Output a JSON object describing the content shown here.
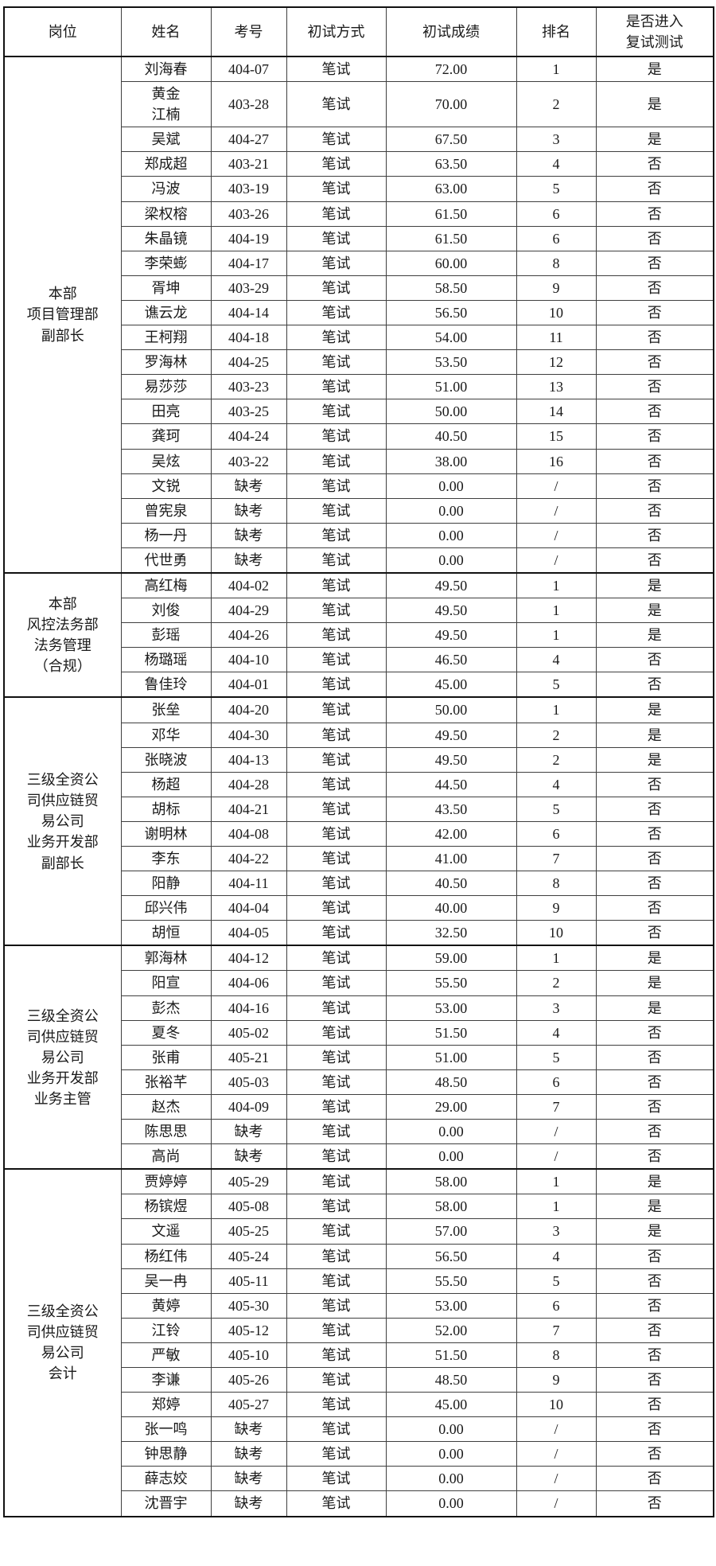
{
  "table": {
    "columns": [
      {
        "key": "position",
        "label": "岗位"
      },
      {
        "key": "name",
        "label": "姓名"
      },
      {
        "key": "exam_no",
        "label": "考号"
      },
      {
        "key": "method",
        "label": "初试方式"
      },
      {
        "key": "score",
        "label": "初试成绩"
      },
      {
        "key": "rank",
        "label": "排名"
      },
      {
        "key": "advance",
        "label": "是否进入\n复试测试"
      }
    ],
    "groups": [
      {
        "position": "本部\n项目管理部\n副部长",
        "rows": [
          {
            "name": "刘海春",
            "exam_no": "404-07",
            "method": "笔试",
            "score": "72.00",
            "rank": "1",
            "advance": "是"
          },
          {
            "name": "黄金\n江楠",
            "exam_no": "403-28",
            "method": "笔试",
            "score": "70.00",
            "rank": "2",
            "advance": "是"
          },
          {
            "name": "吴斌",
            "exam_no": "404-27",
            "method": "笔试",
            "score": "67.50",
            "rank": "3",
            "advance": "是"
          },
          {
            "name": "郑成超",
            "exam_no": "403-21",
            "method": "笔试",
            "score": "63.50",
            "rank": "4",
            "advance": "否"
          },
          {
            "name": "冯波",
            "exam_no": "403-19",
            "method": "笔试",
            "score": "63.00",
            "rank": "5",
            "advance": "否"
          },
          {
            "name": "梁权榕",
            "exam_no": "403-26",
            "method": "笔试",
            "score": "61.50",
            "rank": "6",
            "advance": "否"
          },
          {
            "name": "朱晶镜",
            "exam_no": "404-19",
            "method": "笔试",
            "score": "61.50",
            "rank": "6",
            "advance": "否"
          },
          {
            "name": "李荣蟛",
            "exam_no": "404-17",
            "method": "笔试",
            "score": "60.00",
            "rank": "8",
            "advance": "否"
          },
          {
            "name": "胥坤",
            "exam_no": "403-29",
            "method": "笔试",
            "score": "58.50",
            "rank": "9",
            "advance": "否"
          },
          {
            "name": "谯云龙",
            "exam_no": "404-14",
            "method": "笔试",
            "score": "56.50",
            "rank": "10",
            "advance": "否"
          },
          {
            "name": "王柯翔",
            "exam_no": "404-18",
            "method": "笔试",
            "score": "54.00",
            "rank": "11",
            "advance": "否"
          },
          {
            "name": "罗海林",
            "exam_no": "404-25",
            "method": "笔试",
            "score": "53.50",
            "rank": "12",
            "advance": "否"
          },
          {
            "name": "易莎莎",
            "exam_no": "403-23",
            "method": "笔试",
            "score": "51.00",
            "rank": "13",
            "advance": "否"
          },
          {
            "name": "田亮",
            "exam_no": "403-25",
            "method": "笔试",
            "score": "50.00",
            "rank": "14",
            "advance": "否"
          },
          {
            "name": "龚珂",
            "exam_no": "404-24",
            "method": "笔试",
            "score": "40.50",
            "rank": "15",
            "advance": "否"
          },
          {
            "name": "吴炫",
            "exam_no": "403-22",
            "method": "笔试",
            "score": "38.00",
            "rank": "16",
            "advance": "否"
          },
          {
            "name": "文锐",
            "exam_no": "缺考",
            "method": "笔试",
            "score": "0.00",
            "rank": "/",
            "advance": "否"
          },
          {
            "name": "曾宪泉",
            "exam_no": "缺考",
            "method": "笔试",
            "score": "0.00",
            "rank": "/",
            "advance": "否"
          },
          {
            "name": "杨一丹",
            "exam_no": "缺考",
            "method": "笔试",
            "score": "0.00",
            "rank": "/",
            "advance": "否"
          },
          {
            "name": "代世勇",
            "exam_no": "缺考",
            "method": "笔试",
            "score": "0.00",
            "rank": "/",
            "advance": "否"
          }
        ]
      },
      {
        "position": "本部\n风控法务部\n法务管理\n（合规）",
        "rows": [
          {
            "name": "高红梅",
            "exam_no": "404-02",
            "method": "笔试",
            "score": "49.50",
            "rank": "1",
            "advance": "是"
          },
          {
            "name": "刘俊",
            "exam_no": "404-29",
            "method": "笔试",
            "score": "49.50",
            "rank": "1",
            "advance": "是"
          },
          {
            "name": "彭瑶",
            "exam_no": "404-26",
            "method": "笔试",
            "score": "49.50",
            "rank": "1",
            "advance": "是"
          },
          {
            "name": "杨璐瑶",
            "exam_no": "404-10",
            "method": "笔试",
            "score": "46.50",
            "rank": "4",
            "advance": "否"
          },
          {
            "name": "鲁佳玲",
            "exam_no": "404-01",
            "method": "笔试",
            "score": "45.00",
            "rank": "5",
            "advance": "否"
          }
        ]
      },
      {
        "position": "三级全资公\n司供应链贸\n易公司\n业务开发部\n副部长",
        "rows": [
          {
            "name": "张垒",
            "exam_no": "404-20",
            "method": "笔试",
            "score": "50.00",
            "rank": "1",
            "advance": "是"
          },
          {
            "name": "邓华",
            "exam_no": "404-30",
            "method": "笔试",
            "score": "49.50",
            "rank": "2",
            "advance": "是"
          },
          {
            "name": "张晓波",
            "exam_no": "404-13",
            "method": "笔试",
            "score": "49.50",
            "rank": "2",
            "advance": "是"
          },
          {
            "name": "杨超",
            "exam_no": "404-28",
            "method": "笔试",
            "score": "44.50",
            "rank": "4",
            "advance": "否"
          },
          {
            "name": "胡标",
            "exam_no": "404-21",
            "method": "笔试",
            "score": "43.50",
            "rank": "5",
            "advance": "否"
          },
          {
            "name": "谢明林",
            "exam_no": "404-08",
            "method": "笔试",
            "score": "42.00",
            "rank": "6",
            "advance": "否"
          },
          {
            "name": "李东",
            "exam_no": "404-22",
            "method": "笔试",
            "score": "41.00",
            "rank": "7",
            "advance": "否"
          },
          {
            "name": "阳静",
            "exam_no": "404-11",
            "method": "笔试",
            "score": "40.50",
            "rank": "8",
            "advance": "否"
          },
          {
            "name": "邱兴伟",
            "exam_no": "404-04",
            "method": "笔试",
            "score": "40.00",
            "rank": "9",
            "advance": "否"
          },
          {
            "name": "胡恒",
            "exam_no": "404-05",
            "method": "笔试",
            "score": "32.50",
            "rank": "10",
            "advance": "否"
          }
        ]
      },
      {
        "position": "三级全资公\n司供应链贸\n易公司\n业务开发部\n业务主管",
        "rows": [
          {
            "name": "郭海林",
            "exam_no": "404-12",
            "method": "笔试",
            "score": "59.00",
            "rank": "1",
            "advance": "是"
          },
          {
            "name": "阳宣",
            "exam_no": "404-06",
            "method": "笔试",
            "score": "55.50",
            "rank": "2",
            "advance": "是"
          },
          {
            "name": "彭杰",
            "exam_no": "404-16",
            "method": "笔试",
            "score": "53.00",
            "rank": "3",
            "advance": "是"
          },
          {
            "name": "夏冬",
            "exam_no": "405-02",
            "method": "笔试",
            "score": "51.50",
            "rank": "4",
            "advance": "否"
          },
          {
            "name": "张甫",
            "exam_no": "405-21",
            "method": "笔试",
            "score": "51.00",
            "rank": "5",
            "advance": "否"
          },
          {
            "name": "张裕芊",
            "exam_no": "405-03",
            "method": "笔试",
            "score": "48.50",
            "rank": "6",
            "advance": "否"
          },
          {
            "name": "赵杰",
            "exam_no": "404-09",
            "method": "笔试",
            "score": "29.00",
            "rank": "7",
            "advance": "否"
          },
          {
            "name": "陈思思",
            "exam_no": "缺考",
            "method": "笔试",
            "score": "0.00",
            "rank": "/",
            "advance": "否"
          },
          {
            "name": "高尚",
            "exam_no": "缺考",
            "method": "笔试",
            "score": "0.00",
            "rank": "/",
            "advance": "否"
          }
        ]
      },
      {
        "position": "三级全资公\n司供应链贸\n易公司\n会计",
        "rows": [
          {
            "name": "贾婷婷",
            "exam_no": "405-29",
            "method": "笔试",
            "score": "58.00",
            "rank": "1",
            "advance": "是"
          },
          {
            "name": "杨镔煜",
            "exam_no": "405-08",
            "method": "笔试",
            "score": "58.00",
            "rank": "1",
            "advance": "是"
          },
          {
            "name": "文遥",
            "exam_no": "405-25",
            "method": "笔试",
            "score": "57.00",
            "rank": "3",
            "advance": "是"
          },
          {
            "name": "杨红伟",
            "exam_no": "405-24",
            "method": "笔试",
            "score": "56.50",
            "rank": "4",
            "advance": "否"
          },
          {
            "name": "吴一冉",
            "exam_no": "405-11",
            "method": "笔试",
            "score": "55.50",
            "rank": "5",
            "advance": "否"
          },
          {
            "name": "黄婷",
            "exam_no": "405-30",
            "method": "笔试",
            "score": "53.00",
            "rank": "6",
            "advance": "否"
          },
          {
            "name": "江铃",
            "exam_no": "405-12",
            "method": "笔试",
            "score": "52.00",
            "rank": "7",
            "advance": "否"
          },
          {
            "name": "严敏",
            "exam_no": "405-10",
            "method": "笔试",
            "score": "51.50",
            "rank": "8",
            "advance": "否"
          },
          {
            "name": "李谦",
            "exam_no": "405-26",
            "method": "笔试",
            "score": "48.50",
            "rank": "9",
            "advance": "否"
          },
          {
            "name": "郑婷",
            "exam_no": "405-27",
            "method": "笔试",
            "score": "45.00",
            "rank": "10",
            "advance": "否"
          },
          {
            "name": "张一鸣",
            "exam_no": "缺考",
            "method": "笔试",
            "score": "0.00",
            "rank": "/",
            "advance": "否"
          },
          {
            "name": "钟思静",
            "exam_no": "缺考",
            "method": "笔试",
            "score": "0.00",
            "rank": "/",
            "advance": "否"
          },
          {
            "name": "薛志姣",
            "exam_no": "缺考",
            "method": "笔试",
            "score": "0.00",
            "rank": "/",
            "advance": "否"
          },
          {
            "name": "沈晋宇",
            "exam_no": "缺考",
            "method": "笔试",
            "score": "0.00",
            "rank": "/",
            "advance": "否"
          }
        ]
      }
    ]
  },
  "colors": {
    "background": "#ffffff",
    "text": "#1a1a1a",
    "border_strong": "#111111",
    "border_light": "#3f3f3f"
  }
}
